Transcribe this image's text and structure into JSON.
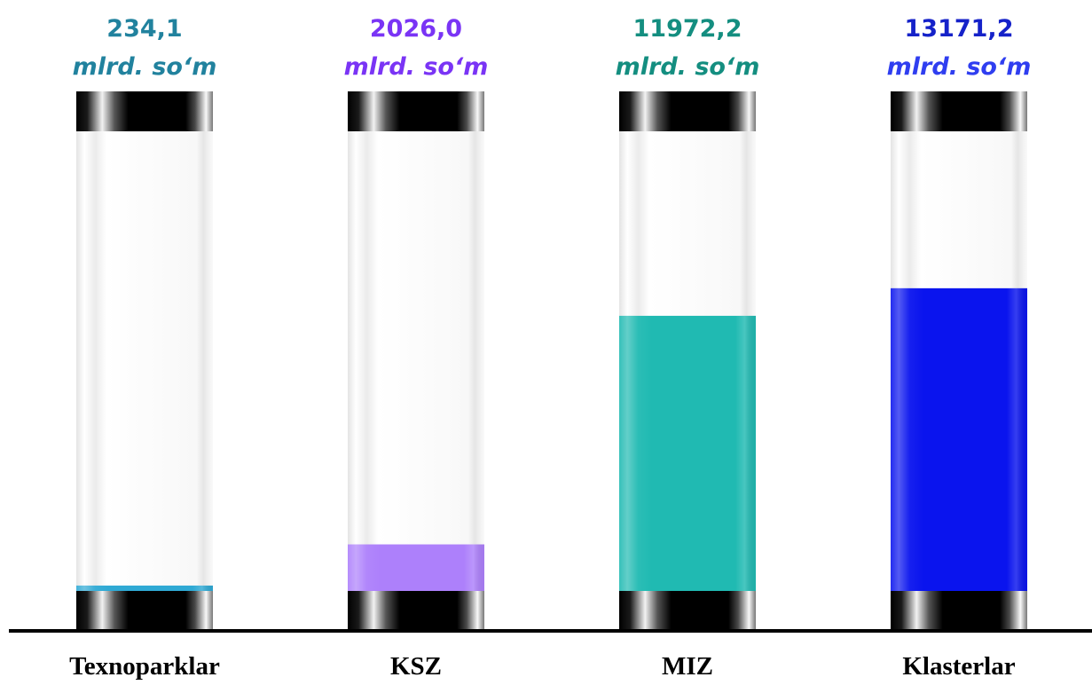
{
  "chart_data": {
    "type": "bar",
    "categories": [
      "Texnoparklar",
      "KSZ",
      "MIZ",
      "Klasterlar"
    ],
    "values": [
      234.1,
      2026.0,
      11972.2,
      13171.2
    ],
    "value_labels": [
      "234,1",
      "2026,0",
      "11972,2",
      "13171,2"
    ],
    "unit": "mlrd. so‘m",
    "colors": [
      "#2fa9d4",
      "#ad80fb",
      "#20bab2",
      "#0a14ee"
    ],
    "value_label_colors": [
      "#21829e",
      "#7a34f5",
      "#148e80",
      "#1522c9"
    ],
    "unit_label_colors": [
      "#21829e",
      "#7a34f5",
      "#148e80",
      "#2f3ef0"
    ],
    "style": "tube-gauge",
    "title": "",
    "xlabel": "",
    "ylabel": ""
  }
}
